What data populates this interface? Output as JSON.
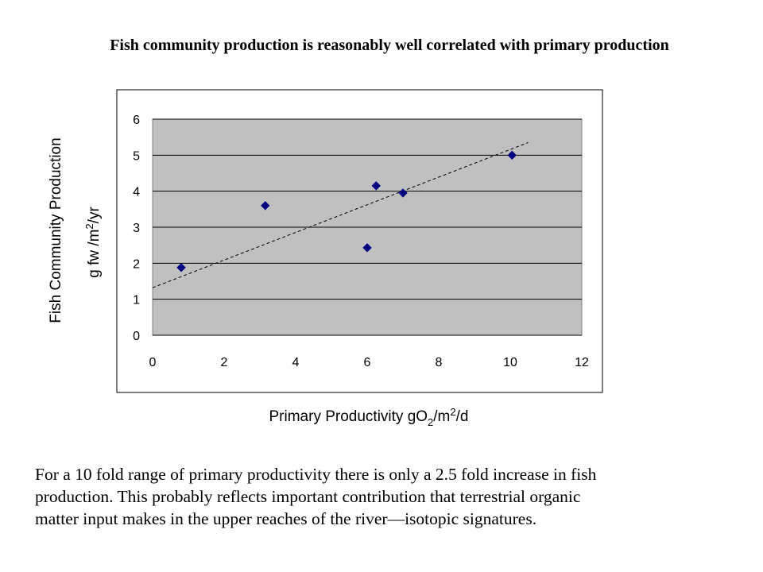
{
  "slide": {
    "title": "Fish community production is reasonably well correlated with primary production",
    "body_lines": [
      "For a 10 fold range of primary productivity there is only a 2.5 fold increase in fish",
      "production.  This probably reflects important contribution that terrestrial organic",
      "matter input makes in the upper reaches of the river—isotopic signatures."
    ]
  },
  "chart_data": {
    "type": "scatter",
    "title": "",
    "xlabel_main": "Primary Productivity gO",
    "xlabel_sub1": "2",
    "xlabel_mid": "/m",
    "xlabel_sup": "2",
    "xlabel_end": "/d",
    "ylabel_line1": "Fish Community Production",
    "ylabel_line2_main": "g fw /m",
    "ylabel_line2_sup": "2",
    "ylabel_line2_end": "/yr",
    "xlim": [
      0,
      12
    ],
    "ylim": [
      0,
      6
    ],
    "xticks": [
      "0",
      "2",
      "4",
      "6",
      "8",
      "10",
      "12"
    ],
    "yticks": [
      "0",
      "1",
      "2",
      "3",
      "4",
      "5",
      "6"
    ],
    "grid": "horizontal",
    "plot_background": "#c0c0c0",
    "marker_color": "#000080",
    "trendline": {
      "style": "dashed",
      "start": [
        0,
        1.32
      ],
      "end": [
        10.5,
        5.35
      ]
    },
    "points": [
      {
        "x": 0.8,
        "y": 1.88
      },
      {
        "x": 3.15,
        "y": 3.6
      },
      {
        "x": 6.0,
        "y": 2.43
      },
      {
        "x": 6.25,
        "y": 4.15
      },
      {
        "x": 7.0,
        "y": 3.95
      },
      {
        "x": 10.05,
        "y": 5.0
      }
    ]
  }
}
